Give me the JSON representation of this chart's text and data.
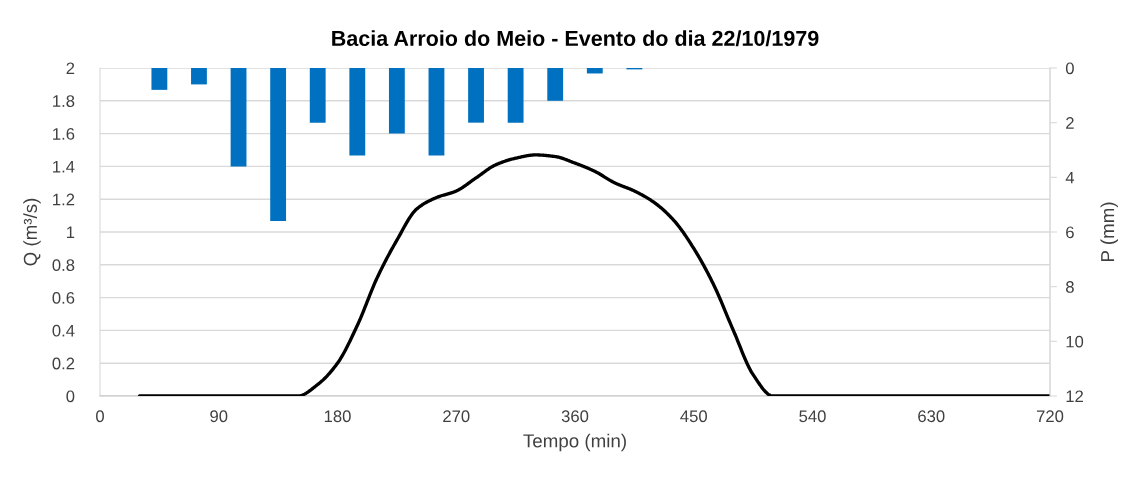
{
  "chart_data": {
    "type": "line",
    "title": "Bacia Arroio do Meio - Evento do dia 22/10/1979",
    "xlabel": "Tempo (min)",
    "ylabel": "Q (m³/s)",
    "y2label": "P (mm)",
    "xlim": [
      0,
      720
    ],
    "xticks": [
      0,
      90,
      180,
      270,
      360,
      450,
      540,
      630,
      720
    ],
    "ylim": [
      0,
      2
    ],
    "yticks": [
      0,
      0.2,
      0.4,
      0.6,
      0.8,
      1,
      1.2,
      1.4,
      1.6,
      1.8,
      2
    ],
    "y2lim": [
      12,
      0
    ],
    "y2ticks": [
      0,
      2,
      4,
      6,
      8,
      10,
      12
    ],
    "grid": "y",
    "marker": "none",
    "line_style": "solid",
    "series": [
      {
        "type": "bar",
        "axis": "y2",
        "color": "#0070c0",
        "x": [
          45,
          75,
          105,
          135,
          165,
          195,
          225,
          255,
          285,
          315,
          345,
          375,
          405
        ],
        "values": [
          0.8,
          0.6,
          3.6,
          5.6,
          2.0,
          3.2,
          2.4,
          3.2,
          2.0,
          2.0,
          1.2,
          0.2,
          0.05
        ]
      },
      {
        "color": "#000000",
        "x": [
          30,
          45,
          60,
          75,
          90,
          105,
          120,
          135,
          150,
          165,
          180,
          195,
          210,
          225,
          240,
          255,
          270,
          285,
          300,
          315,
          330,
          345,
          360,
          375,
          390,
          405,
          420,
          435,
          450,
          465,
          480,
          495,
          510,
          525,
          540,
          555,
          570,
          585,
          600,
          615,
          630,
          645,
          660,
          675,
          690,
          705,
          720
        ],
        "values": [
          0,
          0,
          0,
          0,
          0,
          0,
          0,
          0,
          0,
          0.07,
          0.2,
          0.43,
          0.72,
          0.95,
          1.14,
          1.21,
          1.25,
          1.33,
          1.41,
          1.45,
          1.47,
          1.46,
          1.42,
          1.37,
          1.3,
          1.25,
          1.18,
          1.07,
          0.9,
          0.68,
          0.4,
          0.13,
          0,
          0,
          0,
          0,
          0,
          0,
          0,
          0,
          0,
          0,
          0,
          0,
          0,
          0,
          0
        ]
      }
    ]
  }
}
